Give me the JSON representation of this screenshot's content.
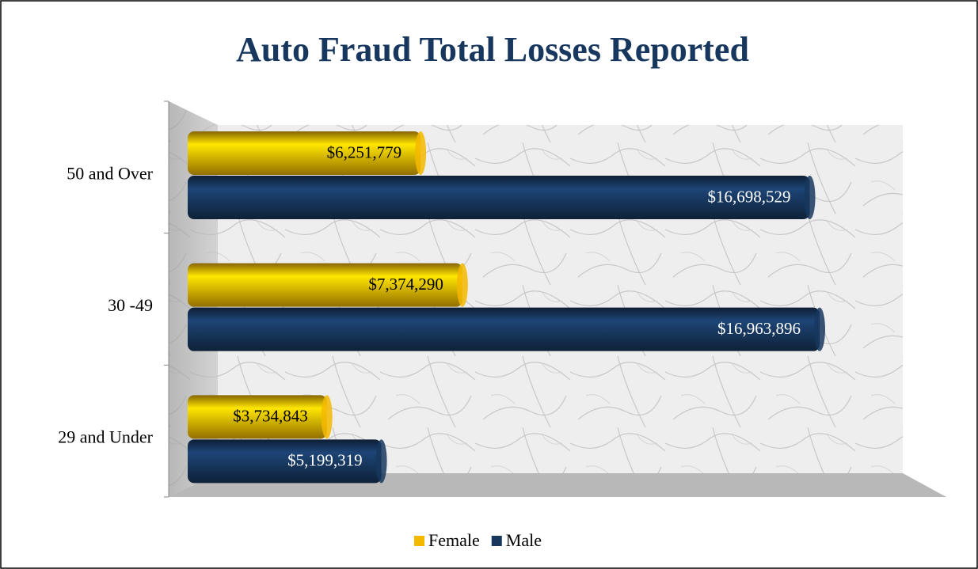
{
  "chart_data": {
    "type": "bar",
    "orientation": "horizontal",
    "title": "Auto Fraud Total Losses Reported",
    "categories": [
      "50 and Over",
      "30 -49",
      "29 and Under"
    ],
    "series": [
      {
        "name": "Female",
        "color": "#f5b800",
        "values": [
          6251779,
          7374290,
          3734843
        ],
        "value_labels": [
          "$6,251,779",
          "$7,374,290",
          "$3,734,843"
        ]
      },
      {
        "name": "Male",
        "color": "#17375e",
        "values": [
          16698529,
          16963896,
          5199319
        ],
        "value_labels": [
          "$16,698,529",
          "$16,963,896",
          "$5,199,319"
        ]
      }
    ],
    "legend": "bottom"
  }
}
